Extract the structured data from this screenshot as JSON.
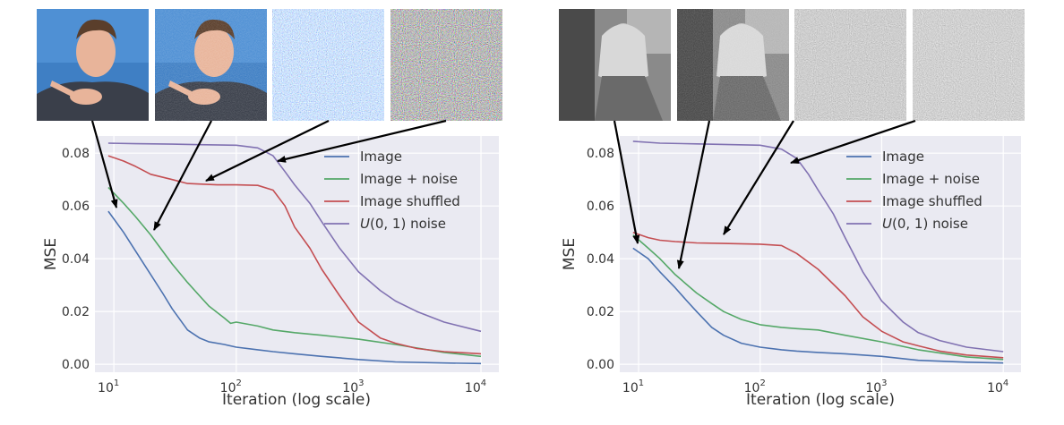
{
  "chart_data": [
    {
      "type": "line",
      "xscale": "log",
      "xlabel": "Iteration (log scale)",
      "ylabel": "MSE",
      "xlim": [
        7,
        14000
      ],
      "ylim": [
        -0.003,
        0.0865
      ],
      "xticks": [
        10,
        100,
        1000,
        10000
      ],
      "xtick_labels": [
        {
          "base": "10",
          "exp": "1"
        },
        {
          "base": "10",
          "exp": "2"
        },
        {
          "base": "10",
          "exp": "3"
        },
        {
          "base": "10",
          "exp": "4"
        }
      ],
      "yticks": [
        0.0,
        0.02,
        0.04,
        0.06,
        0.08
      ],
      "ytick_labels": [
        "0.00",
        "0.02",
        "0.04",
        "0.06",
        "0.08"
      ],
      "grid": true,
      "legend_position": "top-right",
      "thumbnails": [
        {
          "label": "Image",
          "icon": "portrait-photo"
        },
        {
          "label": "Image + noise",
          "icon": "noisy-portrait-photo"
        },
        {
          "label": "Image shuffled",
          "icon": "shuffled-pixels"
        },
        {
          "label": "U(0,1) noise",
          "icon": "uniform-noise"
        }
      ],
      "series": [
        {
          "name": "Image",
          "color": "#4c72b0",
          "x": [
            9,
            12,
            15,
            20,
            25,
            30,
            40,
            50,
            60,
            80,
            100,
            150,
            200,
            300,
            500,
            1000,
            2000,
            5000,
            10000
          ],
          "y": [
            0.058,
            0.05,
            0.043,
            0.034,
            0.027,
            0.021,
            0.013,
            0.01,
            0.0085,
            0.0075,
            0.0065,
            0.0055,
            0.0048,
            0.004,
            0.003,
            0.0018,
            0.0009,
            0.0005,
            0.0003
          ]
        },
        {
          "name": "Image + noise",
          "color": "#55a868",
          "x": [
            9,
            12,
            15,
            20,
            30,
            40,
            50,
            60,
            80,
            90,
            100,
            150,
            200,
            300,
            500,
            1000,
            2000,
            5000,
            10000
          ],
          "y": [
            0.067,
            0.061,
            0.056,
            0.049,
            0.038,
            0.031,
            0.026,
            0.022,
            0.0175,
            0.0155,
            0.016,
            0.0145,
            0.013,
            0.012,
            0.011,
            0.0095,
            0.0075,
            0.0045,
            0.003
          ]
        },
        {
          "name": "Image shuffled",
          "color": "#c44e52",
          "x": [
            9,
            12,
            15,
            20,
            30,
            40,
            50,
            70,
            100,
            150,
            200,
            250,
            300,
            400,
            500,
            700,
            1000,
            1500,
            2000,
            3000,
            5000,
            10000
          ],
          "y": [
            0.079,
            0.077,
            0.075,
            0.072,
            0.07,
            0.0685,
            0.0683,
            0.068,
            0.068,
            0.0678,
            0.066,
            0.06,
            0.052,
            0.044,
            0.036,
            0.026,
            0.016,
            0.01,
            0.008,
            0.006,
            0.0048,
            0.004
          ]
        },
        {
          "name": "U(0,1) noise",
          "color": "#8172b2",
          "x": [
            9,
            15,
            30,
            50,
            100,
            150,
            200,
            250,
            300,
            400,
            500,
            700,
            1000,
            1500,
            2000,
            3000,
            5000,
            10000
          ],
          "y": [
            0.0838,
            0.0836,
            0.0834,
            0.0832,
            0.083,
            0.082,
            0.079,
            0.073,
            0.068,
            0.061,
            0.054,
            0.044,
            0.035,
            0.028,
            0.024,
            0.02,
            0.016,
            0.0125
          ]
        }
      ]
    },
    {
      "type": "line",
      "xscale": "log",
      "xlabel": "Iteration (log scale)",
      "ylabel": "MSE",
      "xlim": [
        7,
        14000
      ],
      "ylim": [
        -0.003,
        0.0865
      ],
      "xticks": [
        10,
        100,
        1000,
        10000
      ],
      "xtick_labels": [
        {
          "base": "10",
          "exp": "1"
        },
        {
          "base": "10",
          "exp": "2"
        },
        {
          "base": "10",
          "exp": "3"
        },
        {
          "base": "10",
          "exp": "4"
        }
      ],
      "yticks": [
        0.0,
        0.02,
        0.04,
        0.06,
        0.08
      ],
      "ytick_labels": [
        "0.00",
        "0.02",
        "0.04",
        "0.06",
        "0.08"
      ],
      "grid": true,
      "legend_position": "top-right",
      "thumbnails": [
        {
          "label": "Image",
          "icon": "grayscale-photo"
        },
        {
          "label": "Image + noise",
          "icon": "noisy-grayscale-photo"
        },
        {
          "label": "Image shuffled",
          "icon": "shuffled-pixels"
        },
        {
          "label": "U(0,1) noise",
          "icon": "uniform-noise"
        }
      ],
      "series": [
        {
          "name": "Image",
          "color": "#4c72b0",
          "x": [
            9,
            12,
            15,
            20,
            25,
            30,
            40,
            50,
            70,
            100,
            150,
            200,
            300,
            500,
            1000,
            2000,
            5000,
            10000
          ],
          "y": [
            0.044,
            0.04,
            0.035,
            0.029,
            0.024,
            0.02,
            0.014,
            0.011,
            0.008,
            0.0065,
            0.0055,
            0.005,
            0.0045,
            0.004,
            0.003,
            0.0015,
            0.0008,
            0.0005
          ]
        },
        {
          "name": "Image + noise",
          "color": "#55a868",
          "x": [
            9,
            12,
            15,
            20,
            30,
            40,
            50,
            70,
            100,
            150,
            200,
            300,
            500,
            1000,
            2000,
            5000,
            10000
          ],
          "y": [
            0.049,
            0.044,
            0.04,
            0.034,
            0.027,
            0.023,
            0.02,
            0.017,
            0.015,
            0.014,
            0.0135,
            0.013,
            0.011,
            0.0085,
            0.0055,
            0.0028,
            0.0018
          ]
        },
        {
          "name": "Image shuffled",
          "color": "#c44e52",
          "x": [
            9,
            12,
            15,
            20,
            30,
            50,
            100,
            150,
            200,
            300,
            500,
            700,
            1000,
            1500,
            2000,
            3000,
            5000,
            10000
          ],
          "y": [
            0.05,
            0.048,
            0.047,
            0.0465,
            0.046,
            0.0458,
            0.0455,
            0.045,
            0.042,
            0.036,
            0.026,
            0.018,
            0.0125,
            0.0085,
            0.007,
            0.005,
            0.0035,
            0.0025
          ]
        },
        {
          "name": "U(0,1) noise",
          "color": "#8172b2",
          "x": [
            9,
            15,
            30,
            50,
            100,
            150,
            200,
            250,
            300,
            400,
            500,
            700,
            1000,
            1500,
            2000,
            3000,
            5000,
            10000
          ],
          "y": [
            0.0845,
            0.0838,
            0.0835,
            0.0833,
            0.083,
            0.0815,
            0.078,
            0.072,
            0.066,
            0.057,
            0.048,
            0.035,
            0.024,
            0.016,
            0.012,
            0.009,
            0.0065,
            0.0048
          ]
        }
      ]
    }
  ]
}
